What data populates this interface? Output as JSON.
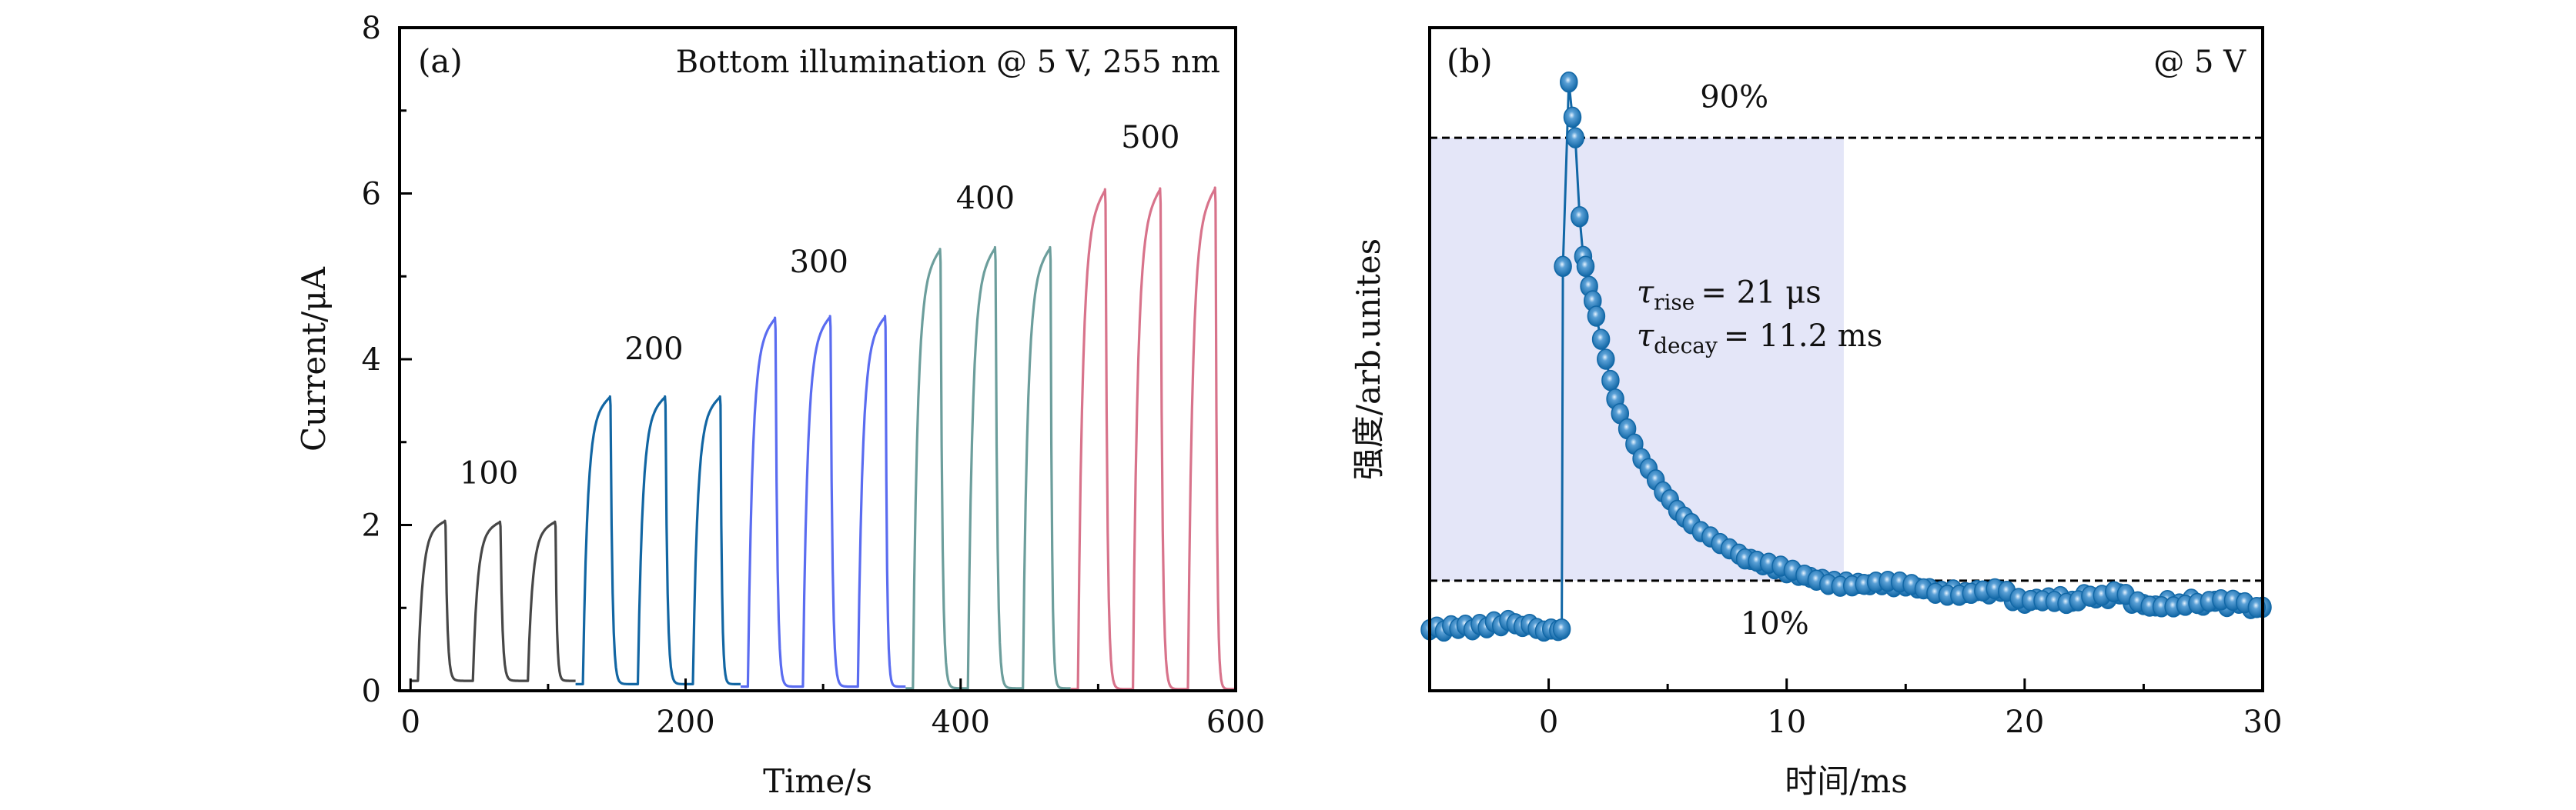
{
  "chart_data": [
    {
      "panel": "a",
      "type": "line",
      "panel_tag": "(a)",
      "title": "Bottom illumination @ 5 V, 255 nm",
      "xlabel": "Time/s",
      "ylabel": "Current/μA",
      "xlim": [
        -8,
        600
      ],
      "ylim": [
        0,
        8
      ],
      "xticks_major": [
        0,
        200,
        400,
        600
      ],
      "xticks_minor": [
        100,
        300,
        500
      ],
      "yticks_major": [
        0,
        2,
        4,
        6,
        8
      ],
      "yticks_minor": [
        1,
        3,
        5,
        7
      ],
      "grid": false,
      "series": [
        {
          "name": "100",
          "color": "#474747",
          "dark_current": 0.12,
          "on_times": [
            5,
            45,
            85
          ],
          "off_times": [
            25,
            65,
            105
          ],
          "peak_values": [
            2.05,
            2.04,
            2.04
          ],
          "segment_end": 120,
          "label": {
            "text": "100",
            "x": 57,
            "y": 2.5
          }
        },
        {
          "name": "200",
          "color": "#1266a3",
          "dark_current": 0.08,
          "on_times": [
            125,
            165,
            205
          ],
          "off_times": [
            145,
            185,
            225
          ],
          "peak_values": [
            3.55,
            3.55,
            3.55
          ],
          "segment_end": 240,
          "label": {
            "text": "200",
            "x": 177,
            "y": 4.0
          }
        },
        {
          "name": "300",
          "color": "#5a6cf0",
          "dark_current": 0.05,
          "on_times": [
            245,
            285,
            325
          ],
          "off_times": [
            265,
            305,
            345
          ],
          "peak_values": [
            4.5,
            4.52,
            4.52
          ],
          "segment_end": 360,
          "label": {
            "text": "300",
            "x": 297,
            "y": 5.05
          }
        },
        {
          "name": "400",
          "color": "#6c9e9c",
          "dark_current": 0.03,
          "on_times": [
            365,
            405,
            445
          ],
          "off_times": [
            385,
            425,
            465
          ],
          "peak_values": [
            5.33,
            5.35,
            5.35
          ],
          "segment_end": 480,
          "label": {
            "text": "400",
            "x": 418,
            "y": 5.82
          }
        },
        {
          "name": "500",
          "color": "#d8738b",
          "dark_current": 0.02,
          "on_times": [
            485,
            525,
            565
          ],
          "off_times": [
            505,
            545,
            585
          ],
          "peak_values": [
            6.05,
            6.06,
            6.07
          ],
          "segment_end": 600,
          "label": {
            "text": "500",
            "x": 538,
            "y": 6.55
          }
        }
      ]
    },
    {
      "panel": "b",
      "type": "scatter",
      "panel_tag": "(b)",
      "title": "@ 5 V",
      "xlabel": "时间/ms",
      "ylabel": "强度/arb.unites",
      "xlim": [
        -5,
        30
      ],
      "ylim": [
        0,
        1
      ],
      "xticks_major": [
        0,
        10,
        20,
        30
      ],
      "xticks_minor": [
        -5,
        5,
        15,
        25
      ],
      "yticks": [],
      "grid": false,
      "marker_color": "#1167a6",
      "shaded_region": {
        "x": [
          -5,
          12.4
        ],
        "y": [
          0.166,
          0.834
        ],
        "color": "#e4e6f8"
      },
      "reference_lines": [
        {
          "label": "90%",
          "y": 0.834,
          "label_x": 7.8,
          "label_y": 0.88
        },
        {
          "label": "10%",
          "y": 0.166,
          "label_x": 9.5,
          "label_y": 0.1
        }
      ],
      "annotations": {
        "tau_rise": {
          "symbol": "τ",
          "subscript": "rise",
          "value": "= 21 μs",
          "x": 3.7,
          "y": 0.585
        },
        "tau_decay": {
          "symbol": "τ",
          "subscript": "decay",
          "value": "= 11.2 ms",
          "x": 3.7,
          "y": 0.52
        }
      },
      "signal": {
        "baseline_before": 0.095,
        "pulse_on_ms": 0.6,
        "peak_ms": 0.85,
        "peak_value": 0.918,
        "tail_value_at_30ms": 0.125,
        "x": [
          -5.0,
          -4.7,
          -4.4,
          -4.1,
          -3.8,
          -3.5,
          -3.2,
          -2.9,
          -2.6,
          -2.3,
          -2.0,
          -1.7,
          -1.4,
          -1.1,
          -0.8,
          -0.5,
          -0.2,
          0.1,
          0.4,
          0.55,
          0.6,
          0.85,
          1.0,
          1.12,
          1.3,
          1.45,
          1.55,
          1.7,
          1.85,
          2.0,
          2.2,
          2.4,
          2.6,
          2.8,
          3.0,
          3.3,
          3.6,
          3.9,
          4.2,
          4.5,
          4.8,
          5.1,
          5.4,
          5.7,
          6.0,
          6.4,
          6.8,
          7.2,
          7.6,
          8.0,
          8.5,
          9.0,
          9.5,
          10.0,
          10.5,
          11.0,
          11.5,
          12.0,
          12.5,
          13.0,
          13.5,
          14.0,
          14.5,
          15.0,
          15.5,
          16.0,
          16.5,
          17.0,
          17.5,
          18.0,
          18.5,
          19.0,
          19.5,
          20.0,
          20.5,
          21.0,
          21.5,
          22.0,
          22.5,
          23.0,
          23.5,
          24.0,
          24.5,
          25.0,
          25.5,
          26.0,
          26.5,
          27.0,
          27.5,
          28.0,
          28.5,
          29.0,
          29.5,
          30.0
        ],
        "y": [
          0.092,
          0.096,
          0.09,
          0.098,
          0.094,
          0.099,
          0.092,
          0.1,
          0.095,
          0.104,
          0.098,
          0.106,
          0.101,
          0.097,
          0.1,
          0.094,
          0.09,
          0.093,
          0.091,
          0.093,
          0.64,
          0.918,
          0.865,
          0.834,
          0.715,
          0.655,
          0.64,
          0.61,
          0.588,
          0.565,
          0.53,
          0.5,
          0.468,
          0.44,
          0.418,
          0.395,
          0.372,
          0.35,
          0.335,
          0.318,
          0.3,
          0.288,
          0.272,
          0.262,
          0.252,
          0.24,
          0.232,
          0.222,
          0.214,
          0.206,
          0.198,
          0.19,
          0.184,
          0.178,
          0.174,
          0.171,
          0.168,
          0.165,
          0.164,
          0.162,
          0.16,
          0.16,
          0.157,
          0.158,
          0.155,
          0.154,
          0.15,
          0.152,
          0.148,
          0.151,
          0.146,
          0.15,
          0.136,
          0.132,
          0.138,
          0.14,
          0.142,
          0.135,
          0.145,
          0.14,
          0.139,
          0.146,
          0.132,
          0.13,
          0.128,
          0.136,
          0.131,
          0.138,
          0.129,
          0.135,
          0.127,
          0.132,
          0.124,
          0.126
        ]
      }
    }
  ]
}
